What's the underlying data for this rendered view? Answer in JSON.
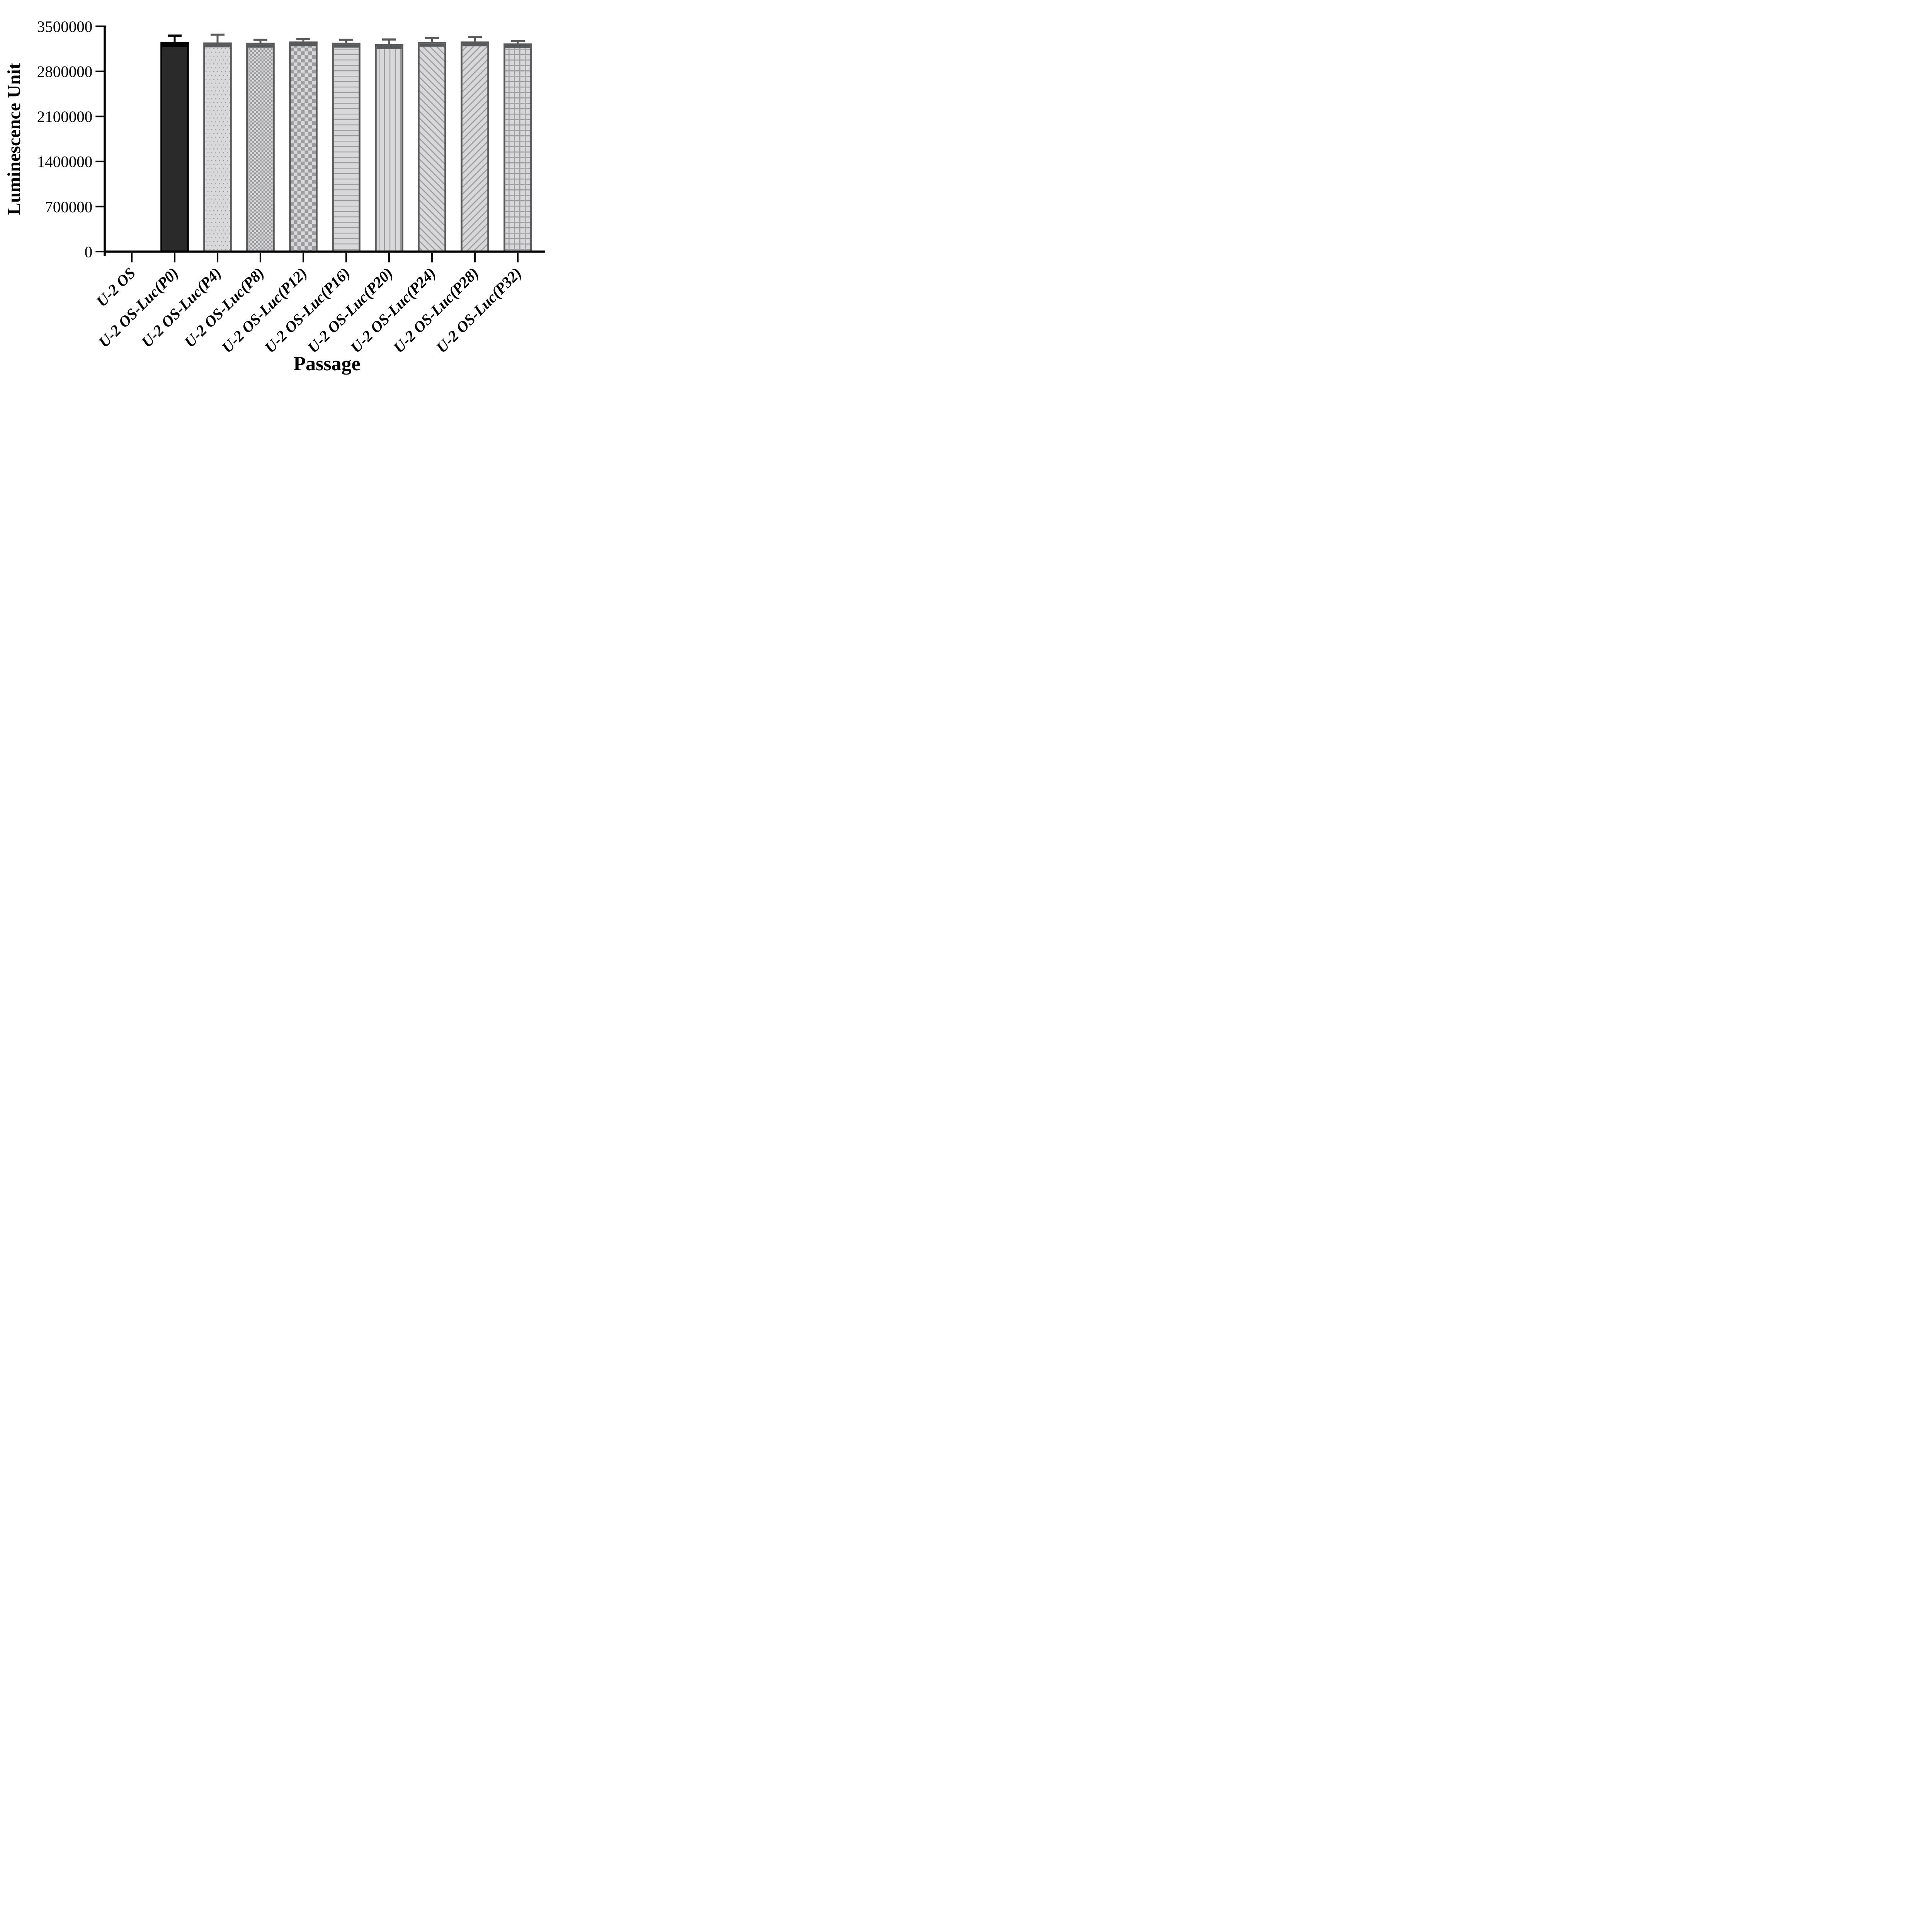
{
  "figure": {
    "background": "#ffffff"
  },
  "colors": {
    "axis": "#000000",
    "solid_bar_fill": "#2a2a2a",
    "solid_bar_border": "#000000",
    "gray_bar_border": "#58595b",
    "gray_bar_fill": "#d8d8da",
    "pattern_foreground": "#9a9ca0"
  },
  "chart_data": {
    "type": "bar",
    "title": "",
    "xlabel": "Passage",
    "ylabel": "Luminescence Unit",
    "ylim": [
      0,
      3500000
    ],
    "yticks": [
      0,
      700000,
      1400000,
      2100000,
      2800000,
      3500000
    ],
    "grid": false,
    "legend": null,
    "error_bars": "upper-only, cap and stem",
    "categories": [
      "U-2 OS",
      "U-2 OS-Luc(P0)",
      "U-2 OS-Luc(P4)",
      "U-2 OS-Luc(P8)",
      "U-2 OS-Luc(P12)",
      "U-2 OS-Luc(P16)",
      "U-2 OS-Luc(P20)",
      "U-2 OS-Luc(P24)",
      "U-2 OS-Luc(P28)",
      "U-2 OS-Luc(P32)"
    ],
    "series": [
      {
        "name": "Luminescence Unit",
        "values": [
          0,
          3240000,
          3235000,
          3230000,
          3250000,
          3230000,
          3210000,
          3245000,
          3250000,
          3220000
        ],
        "errors": [
          0,
          115000,
          135000,
          60000,
          50000,
          60000,
          85000,
          75000,
          80000,
          50000
        ]
      }
    ],
    "bar_styles": [
      {
        "pattern": "none",
        "fill": "none",
        "border": "none",
        "error_color": "none"
      },
      {
        "pattern": "solid",
        "fill": "#2a2a2a",
        "border": "#000000",
        "error_color": "#000000"
      },
      {
        "pattern": "dots",
        "fill": "#d8d8da",
        "border": "#58595b",
        "error_color": "#58595b"
      },
      {
        "pattern": "checker-small",
        "fill": "#d8d8da",
        "border": "#58595b",
        "error_color": "#58595b"
      },
      {
        "pattern": "checker-large",
        "fill": "#d8d8da",
        "border": "#58595b",
        "error_color": "#58595b"
      },
      {
        "pattern": "hlines",
        "fill": "#d8d8da",
        "border": "#58595b",
        "error_color": "#58595b"
      },
      {
        "pattern": "vlines",
        "fill": "#d8d8da",
        "border": "#58595b",
        "error_color": "#58595b"
      },
      {
        "pattern": "diag-right",
        "fill": "#d8d8da",
        "border": "#58595b",
        "error_color": "#58595b"
      },
      {
        "pattern": "diag-left",
        "fill": "#d8d8da",
        "border": "#58595b",
        "error_color": "#58595b"
      },
      {
        "pattern": "grid",
        "fill": "#d8d8da",
        "border": "#58595b",
        "error_color": "#58595b"
      }
    ]
  }
}
